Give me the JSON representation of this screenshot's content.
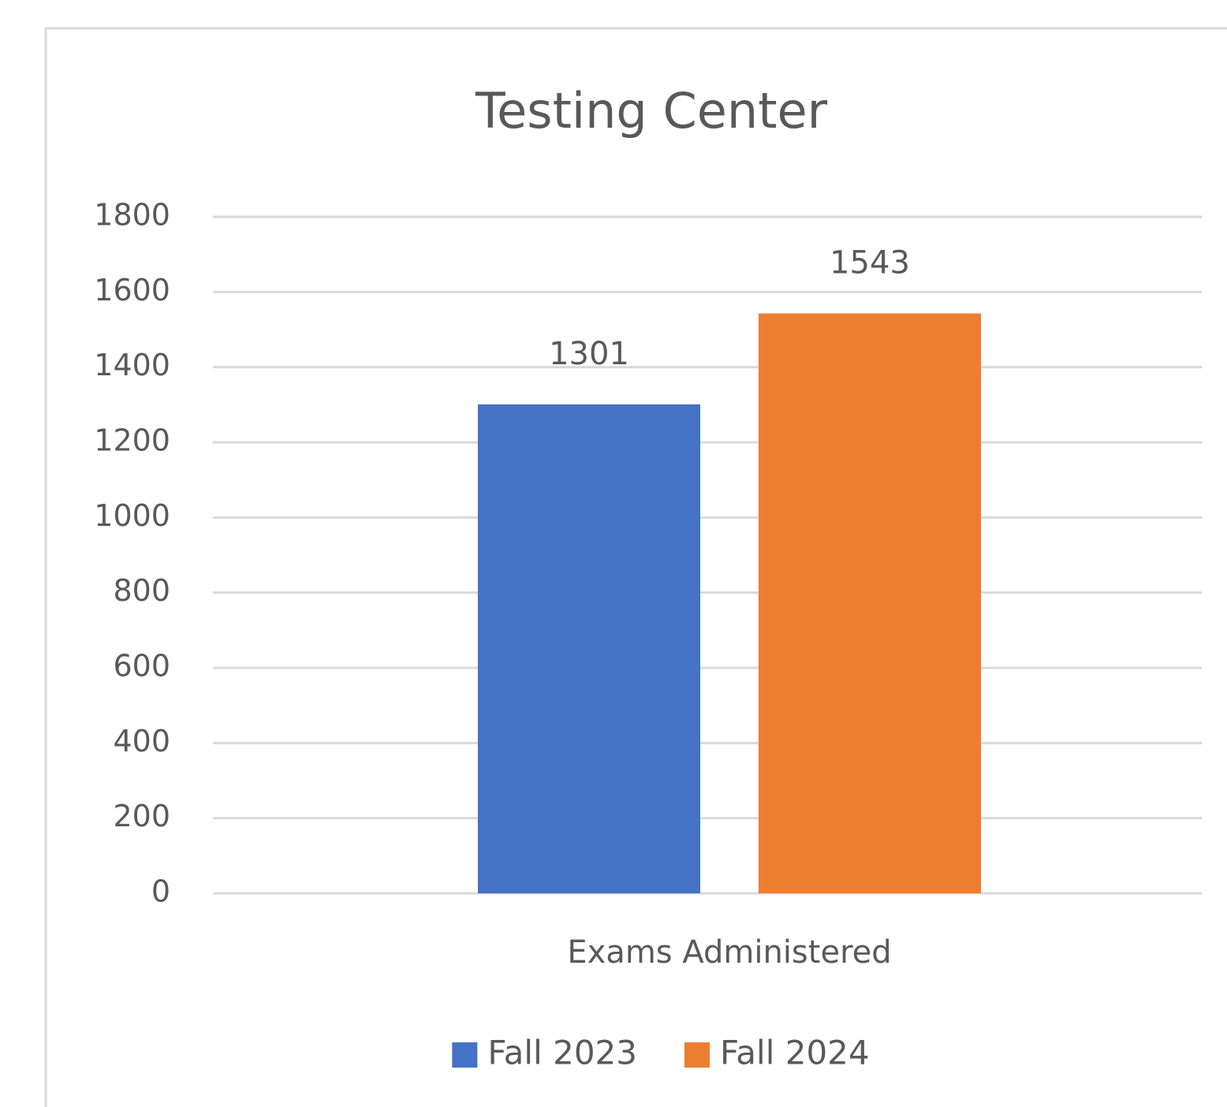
{
  "chart_data": {
    "type": "bar",
    "title": "Testing Center",
    "categories": [
      "Exams Administered"
    ],
    "series": [
      {
        "name": "Fall 2023",
        "color": "#4472c4",
        "values": [
          1301
        ]
      },
      {
        "name": "Fall 2024",
        "color": "#ed7d31",
        "values": [
          1543
        ]
      }
    ],
    "ylim": [
      0,
      1800
    ],
    "yticks": [
      0,
      200,
      400,
      600,
      800,
      1000,
      1200,
      1400,
      1600,
      1800
    ],
    "grid": true,
    "legend": "bottom",
    "data_labels": true
  }
}
